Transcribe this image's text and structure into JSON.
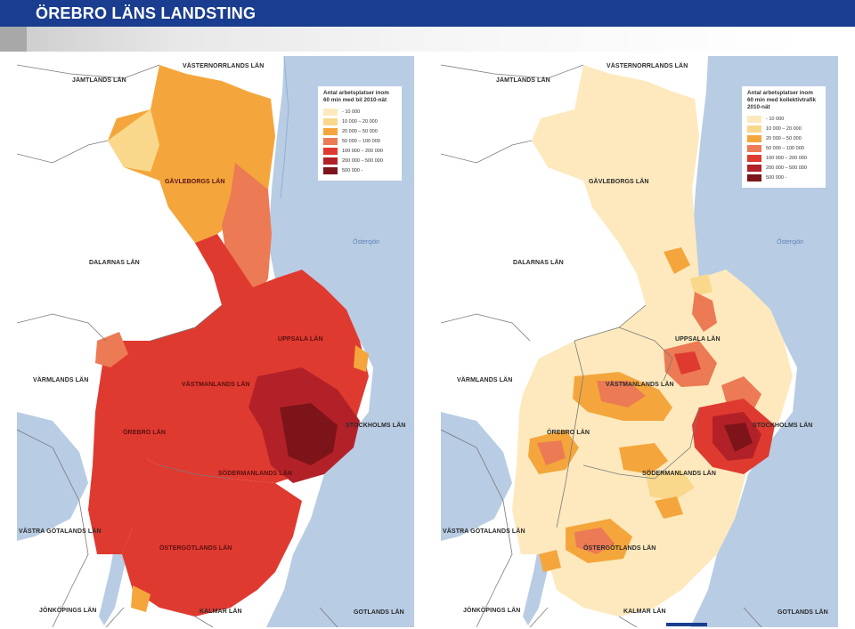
{
  "header": {
    "title": "ÖREBRO LÄNS LANDSTING"
  },
  "colors": {
    "header_bg": "#1a3d8f",
    "sea": "#b8cce4",
    "land": "#ffffff",
    "border": "#7a7a7a",
    "class_1": "#fde9bd",
    "class_2": "#f9d88c",
    "class_3": "#f4a63c",
    "class_4": "#ec7a54",
    "class_5": "#df3a30",
    "class_6": "#b32128",
    "class_7": "#7d1419"
  },
  "maps": [
    {
      "legend": {
        "title": "Antal arbetsplatser inom 60 min med bil 2010-nät",
        "items": [
          {
            "label": "- 10 000",
            "color": "#fde9bd"
          },
          {
            "label": "10 000 – 20 000",
            "color": "#f9d88c"
          },
          {
            "label": "20 000 – 50 000",
            "color": "#f4a63c"
          },
          {
            "label": "50 000 – 100 000",
            "color": "#ec7a54"
          },
          {
            "label": "100 000 – 200 000",
            "color": "#df3a30"
          },
          {
            "label": "200 000 – 500 000",
            "color": "#b32128"
          },
          {
            "label": "500 000 -",
            "color": "#7d1419"
          }
        ]
      },
      "labels": {
        "vasternorrland": "VÄSTERNORRLANDS LÄN",
        "jamtland": "JÄMTLANDS LÄN",
        "gavleborg": "GÄVLEBORGS LÄN",
        "dalarna": "DALARNAS LÄN",
        "uppsala": "UPPSALA LÄN",
        "varmland": "VÄRMLANDS LÄN",
        "vastmanland": "VÄSTMANLANDS LÄN",
        "orebro": "ÖREBRO LÄN",
        "stockholm": "STOCKHOLMS LÄN",
        "sodermanland": "SÖDERMANLANDS LÄN",
        "vastra_gotaland": "VÄSTRA GÖTALANDS LÄN",
        "ostergotland": "ÖSTERGÖTLANDS LÄN",
        "jonkoping": "JÖNKÖPINGS LÄN",
        "kalmar": "KALMAR LÄN",
        "gotland": "GOTLANDS LÄN",
        "ostersjon": "Östersjön"
      }
    },
    {
      "legend": {
        "title": "Antal arbetsplatser inom 60 min med kollektivtrafik 2010-nät",
        "items": [
          {
            "label": "- 10 000",
            "color": "#fde9bd"
          },
          {
            "label": "10 000 – 20 000",
            "color": "#f9d88c"
          },
          {
            "label": "20 000 – 50 000",
            "color": "#f4a63c"
          },
          {
            "label": "50 000 – 100 000",
            "color": "#ec7a54"
          },
          {
            "label": "100 000 – 200 000",
            "color": "#df3a30"
          },
          {
            "label": "200 000 – 500 000",
            "color": "#b32128"
          },
          {
            "label": "500 000 -",
            "color": "#7d1419"
          }
        ]
      },
      "labels": {
        "vasternorrland": "VÄSTERNORRLANDS LÄN",
        "jamtland": "JÄMTLANDS LÄN",
        "gavleborg": "GÄVLEBORGS LÄN",
        "dalarna": "DALARNAS LÄN",
        "uppsala": "UPPSALA LÄN",
        "varmland": "VÄRMLANDS LÄN",
        "vastmanland": "VÄSTMANLANDS LÄN",
        "orebro": "ÖREBRO LÄN",
        "stockholm": "STOCKHOLMS LÄN",
        "sodermanland": "SÖDERMANLANDS LÄN",
        "vastra_gotaland": "VÄSTRA GÖTALANDS LÄN",
        "ostergotland": "ÖSTERGÖTLANDS LÄN",
        "jonkoping": "JÖNKÖPINGS LÄN",
        "kalmar": "KALMAR LÄN",
        "gotland": "GOTLANDS LÄN",
        "ostersjon": "Östersjön"
      }
    }
  ]
}
